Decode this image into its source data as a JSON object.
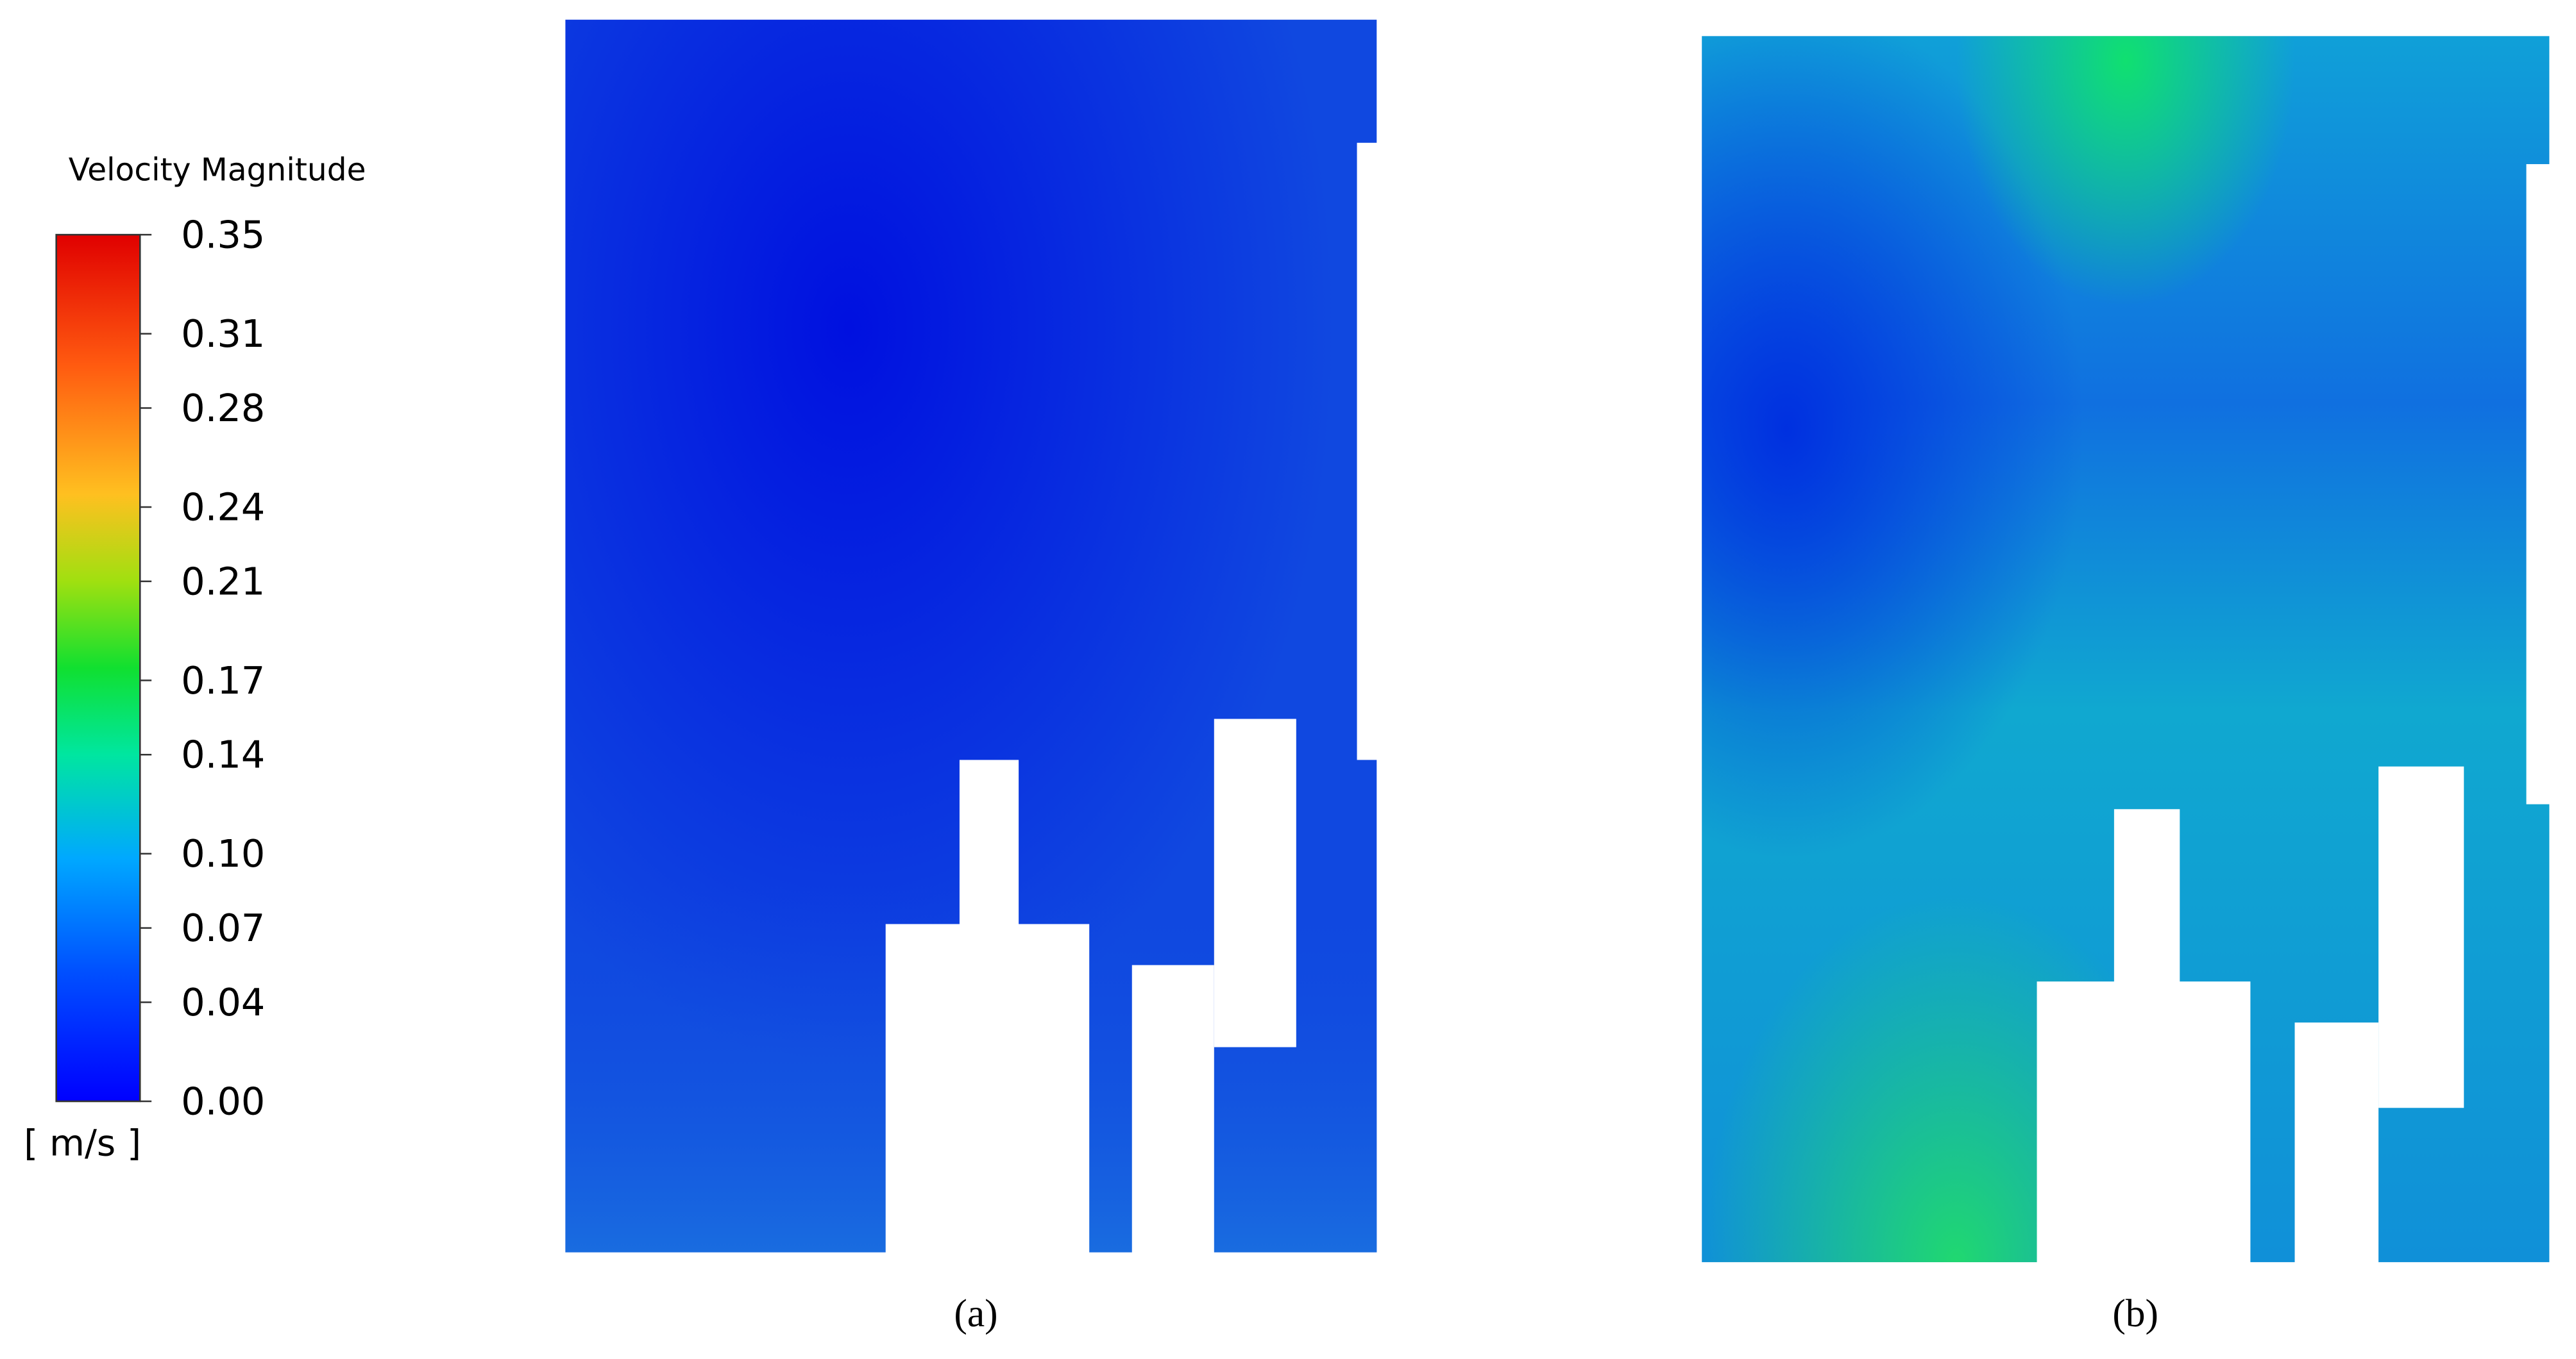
{
  "colorbar": {
    "title": "Velocity Magnitude",
    "unit": "[ m/s ]",
    "range": [
      0,
      0.35
    ],
    "ticks": [
      {
        "value": 0,
        "label": "0.00"
      },
      0.04,
      0.07,
      {
        "value": 0.1,
        "label": "0.10"
      },
      0.14,
      0.17,
      0.21,
      0.24,
      0.28,
      0.31,
      0.35
    ]
  },
  "panels": [
    {
      "label": "(a)"
    },
    {
      "label": "(b)"
    }
  ]
}
